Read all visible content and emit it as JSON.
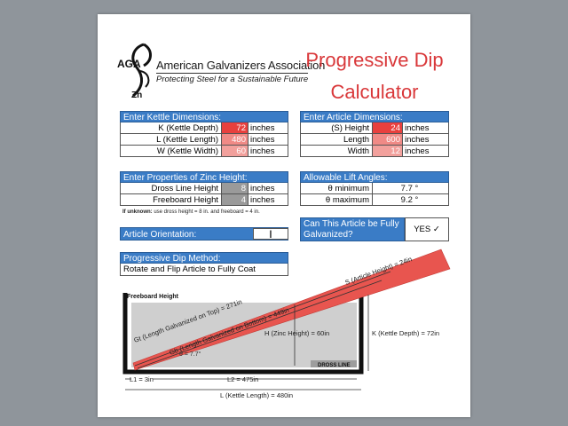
{
  "logo": {
    "acronym": "AGA",
    "element": "Zn",
    "name": "American Galvanizers Association",
    "tagline": "Protecting Steel for a Sustainable Future"
  },
  "title": {
    "line1": "Progressive Dip",
    "line2": "Calculator"
  },
  "kettle": {
    "heading": "Enter Kettle Dimensions:",
    "rows": [
      {
        "label": "K (Kettle Depth)",
        "value": "72",
        "unit": "inches",
        "color": "#e8403e"
      },
      {
        "label": "L (Kettle Length)",
        "value": "480",
        "unit": "inches",
        "color": "#f08a86"
      },
      {
        "label": "W (Kettle Width)",
        "value": "60",
        "unit": "inches",
        "color": "#f2a09c"
      }
    ]
  },
  "article": {
    "heading": "Enter Article Dimensions:",
    "rows": [
      {
        "label": "(S) Height",
        "value": "24",
        "unit": "inches",
        "color": "#e8403e"
      },
      {
        "label": "Length",
        "value": "600",
        "unit": "inches",
        "color": "#f08a86"
      },
      {
        "label": "Width",
        "value": "12",
        "unit": "inches",
        "color": "#f2a09c"
      }
    ]
  },
  "zinc": {
    "heading": "Enter Properties of Zinc Height:",
    "rows": [
      {
        "label": "Dross Line Height",
        "value": "8",
        "unit": "inches",
        "color": "#9a9a9a"
      },
      {
        "label": "Freeboard Height",
        "value": "4",
        "unit": "inches",
        "color": "#9a9a9a"
      }
    ],
    "note_bold": "If unknown:",
    "note": "use dross height = 8 in. and freeboard = 4 in."
  },
  "angles": {
    "heading": "Allowable Lift Angles:",
    "rows": [
      {
        "label": "θ minimum",
        "value": "7.7 °"
      },
      {
        "label": "θ maximum",
        "value": "9.2 °"
      }
    ]
  },
  "orientation": {
    "heading": "Article Orientation:",
    "value": "|"
  },
  "galvanized": {
    "question": "Can This Article be Fully Galvanized?",
    "answer": "YES ✓"
  },
  "method": {
    "heading": "Progressive Dip Method:",
    "text": "Rotate and Flip Article to Fully Coat"
  },
  "diagram": {
    "freeboard_label": "Freeboard Height",
    "dross_label": "DROSS LINE",
    "zinc_height_label": "H (Zinc Height) = 60in",
    "kettle_depth_label": "K (Kettle Depth) = 72in",
    "gt_label": "Gt (Length Galvanized on Top) = 271in",
    "gb_label": "Gb (Length Galvanized on Bottom) = 449in",
    "s_label": "S (Article Height) = 24in",
    "theta_label": "θ = 7.7°",
    "l1_label": "L1 = 3in",
    "l2_label": "L2 = 475in",
    "l_label": "L (Kettle Length) = 480in",
    "article_color": "#e8554f",
    "zinc_color": "#cfcfcf"
  }
}
